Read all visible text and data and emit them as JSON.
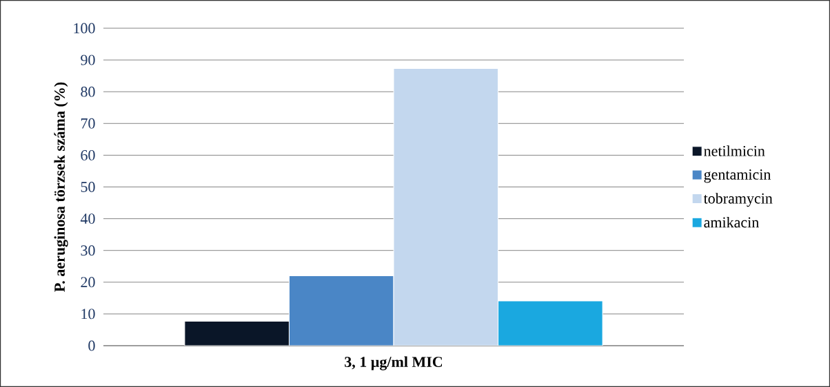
{
  "chart_data": {
    "type": "bar",
    "ylabel": "P. aeruginosa törzsek száma (%)",
    "categories": [
      "3, 1 µg/ml MIC"
    ],
    "series": [
      {
        "name": "netilmicin",
        "color": "#0a1628",
        "values": [
          7.7
        ]
      },
      {
        "name": "gentamicin",
        "color": "#4a86c6",
        "values": [
          22
        ]
      },
      {
        "name": "tobramycin",
        "color": "#c3d7ee",
        "values": [
          87.3
        ]
      },
      {
        "name": "amikacin",
        "color": "#1aa8e0",
        "values": [
          14.1
        ]
      }
    ],
    "ylim": [
      0,
      100
    ],
    "yticks": [
      0,
      10,
      20,
      30,
      40,
      50,
      60,
      70,
      80,
      90,
      100
    ],
    "grid": "y",
    "legend": "right"
  }
}
